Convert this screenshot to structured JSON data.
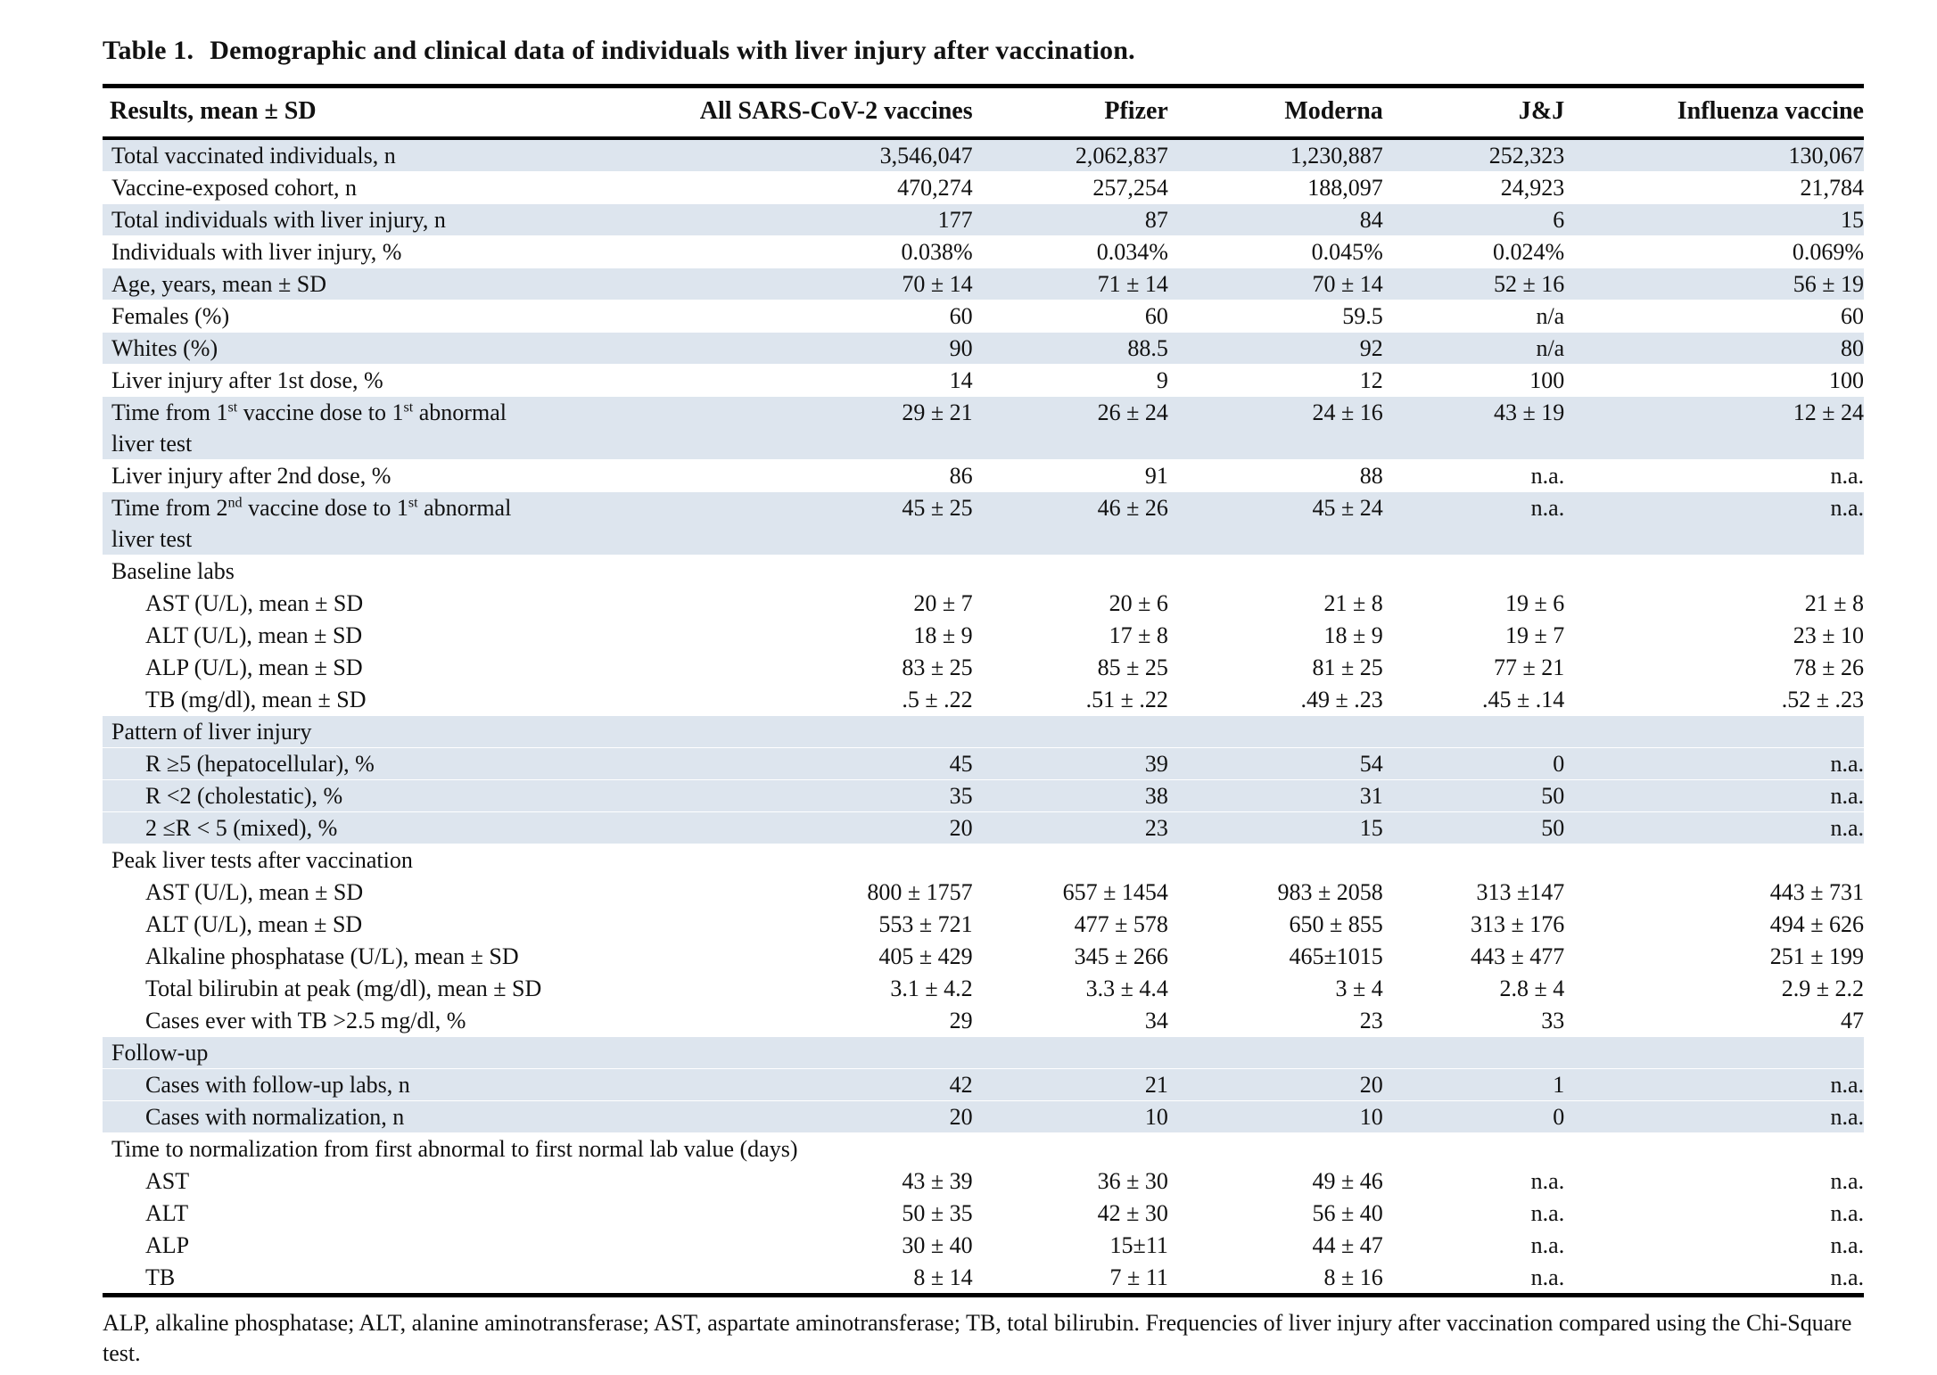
{
  "table": {
    "title_prefix": "Table 1.",
    "title_text": "Demographic and clinical data of individuals with liver injury after vaccination.",
    "columns": [
      "Results, mean ± SD",
      "All SARS-CoV-2 vaccines",
      "Pfizer",
      "Moderna",
      "J&J",
      "Influenza vaccine"
    ],
    "rows": [
      {
        "label": "Total vaccinated individuals, n",
        "values": [
          "3,546,047",
          "2,062,837",
          "1,230,887",
          "252,323",
          "130,067"
        ],
        "shaded": true
      },
      {
        "label": "Vaccine-exposed cohort, n",
        "values": [
          "470,274",
          "257,254",
          "188,097",
          "24,923",
          "21,784"
        ],
        "shaded": false
      },
      {
        "label": "Total individuals with liver injury, n",
        "values": [
          "177",
          "87",
          "84",
          "6",
          "15"
        ],
        "shaded": true
      },
      {
        "label": "Individuals with liver injury, %",
        "values": [
          "0.038%",
          "0.034%",
          "0.045%",
          "0.024%",
          "0.069%"
        ],
        "shaded": false
      },
      {
        "label": "Age, years, mean ± SD",
        "values": [
          "70 ± 14",
          "71 ± 14",
          "70 ± 14",
          "52 ± 16",
          "56 ± 19"
        ],
        "shaded": true
      },
      {
        "label": "Females (%)",
        "values": [
          "60",
          "60",
          "59.5",
          "n/a",
          "60"
        ],
        "shaded": false
      },
      {
        "label": "Whites (%)",
        "values": [
          "90",
          "88.5",
          "92",
          "n/a",
          "80"
        ],
        "shaded": true
      },
      {
        "label": "Liver injury after 1st dose, %",
        "values": [
          "14",
          "9",
          "12",
          "100",
          "100"
        ],
        "shaded": false
      },
      {
        "label": "Time from 1^st^ vaccine dose to 1^st^ abnormal\nliver test",
        "values": [
          "29 ± 21",
          "26 ± 24",
          "24 ± 16",
          "43 ± 19",
          "12 ± 24"
        ],
        "shaded": true,
        "justify": true
      },
      {
        "label": "Liver injury after 2nd dose, %",
        "values": [
          "86",
          "91",
          "88",
          "n.a.",
          "n.a."
        ],
        "shaded": false
      },
      {
        "label": "Time from 2^nd^ vaccine dose to 1^st^ abnormal\nliver test",
        "values": [
          "45 ± 25",
          "46 ± 26",
          "45 ± 24",
          "n.a.",
          "n.a."
        ],
        "shaded": true,
        "justify": true
      },
      {
        "label": "Baseline labs",
        "values": [],
        "section": true,
        "shaded": false
      },
      {
        "label": "AST (U/L), mean ± SD",
        "values": [
          "20 ± 7",
          "20 ± 6",
          "21 ± 8",
          "19 ± 6",
          "21 ± 8"
        ],
        "shaded": false,
        "indent": true
      },
      {
        "label": "ALT (U/L), mean ± SD",
        "values": [
          "18 ± 9",
          "17 ± 8",
          "18 ± 9",
          "19 ± 7",
          "23 ± 10"
        ],
        "shaded": false,
        "indent": true
      },
      {
        "label": "ALP (U/L), mean ± SD",
        "values": [
          "83 ± 25",
          "85 ± 25",
          "81 ± 25",
          "77 ± 21",
          "78 ± 26"
        ],
        "shaded": false,
        "indent": true
      },
      {
        "label": "TB (mg/dl), mean ± SD",
        "values": [
          ".5 ± .22",
          ".51 ± .22",
          ".49 ± .23",
          ".45 ± .14",
          ".52 ± .23"
        ],
        "shaded": false,
        "indent": true
      },
      {
        "label": "Pattern of liver injury",
        "values": [],
        "section": true,
        "shaded": true
      },
      {
        "label": "R ≥5 (hepatocellular), %",
        "values": [
          "45",
          "39",
          "54",
          "0",
          "n.a."
        ],
        "shaded": true,
        "indent": true
      },
      {
        "label": "R <2 (cholestatic), %",
        "values": [
          "35",
          "38",
          "31",
          "50",
          "n.a."
        ],
        "shaded": true,
        "indent": true
      },
      {
        "label": "2 ≤R < 5 (mixed), %",
        "values": [
          "20",
          "23",
          "15",
          "50",
          "n.a."
        ],
        "shaded": true,
        "indent": true
      },
      {
        "label": "Peak liver tests after vaccination",
        "values": [],
        "section": true,
        "shaded": false
      },
      {
        "label": "AST (U/L), mean ± SD",
        "values": [
          "800 ± 1757",
          "657 ± 1454",
          "983 ± 2058",
          "313 ±147",
          "443 ± 731"
        ],
        "shaded": false,
        "indent": true
      },
      {
        "label": "ALT (U/L), mean ± SD",
        "values": [
          "553 ± 721",
          "477 ± 578",
          "650 ± 855",
          "313 ± 176",
          "494 ± 626"
        ],
        "shaded": false,
        "indent": true
      },
      {
        "label": "Alkaline phosphatase (U/L), mean ± SD",
        "values": [
          "405 ± 429",
          "345 ± 266",
          "465±1015",
          "443 ± 477",
          "251 ± 199"
        ],
        "shaded": false,
        "indent": true
      },
      {
        "label": "Total bilirubin at peak (mg/dl), mean ± SD",
        "values": [
          "3.1 ± 4.2",
          "3.3 ± 4.4",
          "3 ± 4",
          "2.8 ± 4",
          "2.9 ± 2.2"
        ],
        "shaded": false,
        "indent": true
      },
      {
        "label": "Cases ever with TB >2.5 mg/dl, %",
        "values": [
          "29",
          "34",
          "23",
          "33",
          "47"
        ],
        "shaded": false,
        "indent": true
      },
      {
        "label": "Follow-up",
        "values": [],
        "section": true,
        "shaded": true
      },
      {
        "label": "Cases with follow-up labs, n",
        "values": [
          "42",
          "21",
          "20",
          "1",
          "n.a."
        ],
        "shaded": true,
        "indent": true
      },
      {
        "label": "Cases with normalization, n",
        "values": [
          "20",
          "10",
          "10",
          "0",
          "n.a."
        ],
        "shaded": true,
        "indent": true
      },
      {
        "label": "Time to normalization from first abnormal to first normal lab value (days)",
        "values": [],
        "section": true,
        "shaded": false
      },
      {
        "label": "AST",
        "values": [
          "43 ± 39",
          "36 ± 30",
          "49 ± 46",
          "n.a.",
          "n.a."
        ],
        "shaded": false,
        "indent": true
      },
      {
        "label": "ALT",
        "values": [
          "50 ± 35",
          "42 ± 30",
          "56 ± 40",
          "n.a.",
          "n.a."
        ],
        "shaded": false,
        "indent": true
      },
      {
        "label": "ALP",
        "values": [
          "30 ± 40",
          "15±11",
          "44 ± 47",
          "n.a.",
          "n.a."
        ],
        "shaded": false,
        "indent": true
      },
      {
        "label": "TB",
        "values": [
          "8 ± 14",
          "7 ± 11",
          "8 ± 16",
          "n.a.",
          "n.a."
        ],
        "shaded": false,
        "indent": true
      }
    ],
    "footnote": "ALP, alkaline phosphatase; ALT, alanine aminotransferase; AST, aspartate aminotransferase; TB, total bilirubin. Frequencies of liver injury after vaccination compared using the Chi-Square test."
  },
  "colors": {
    "row_shade": "#dde5ee",
    "rule": "#000000",
    "text": "#111111"
  }
}
